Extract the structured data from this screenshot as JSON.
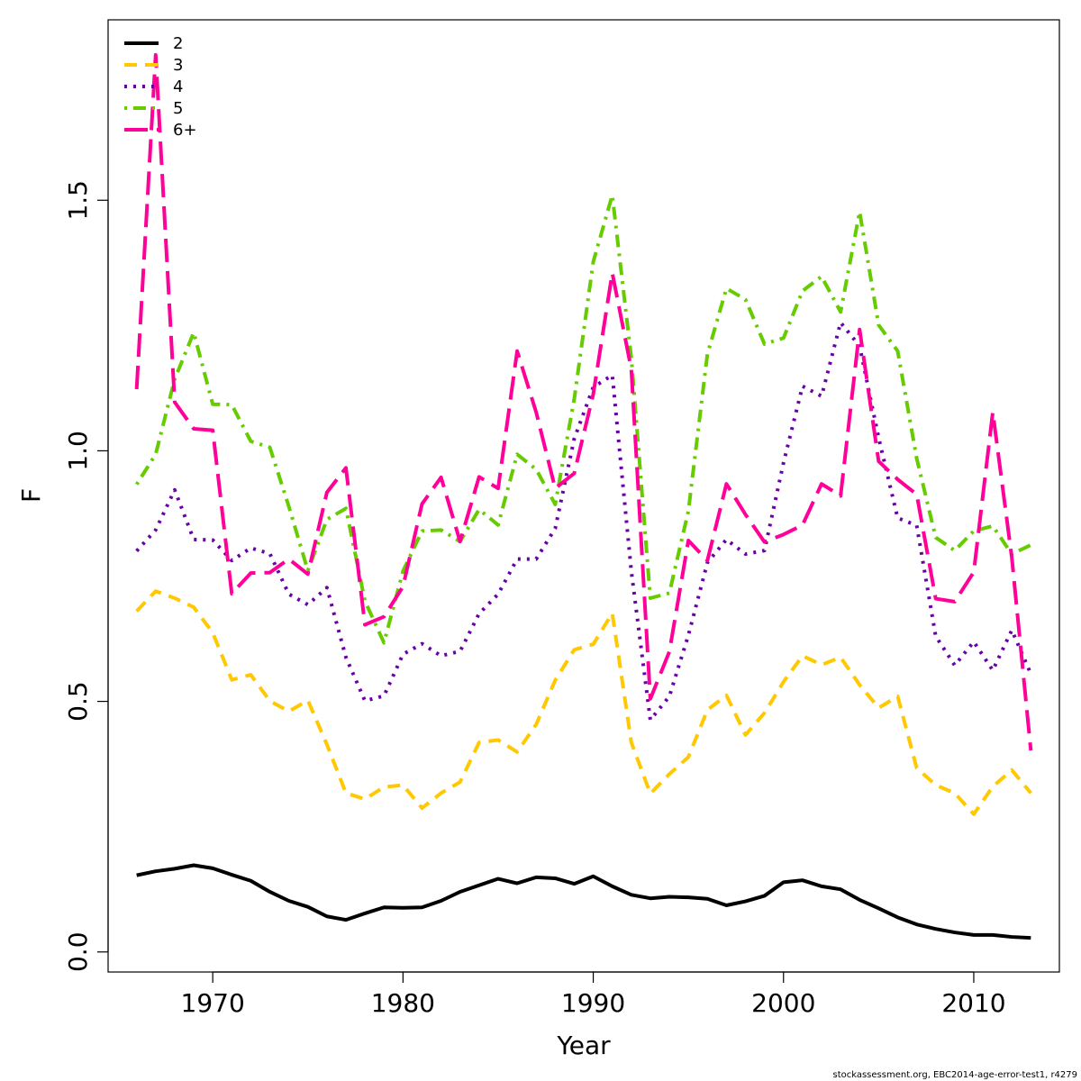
{
  "chart_data": {
    "type": "line",
    "xlabel": "Year",
    "ylabel": "F",
    "xlim": [
      1964.5,
      2014.5
    ],
    "ylim": [
      -0.04,
      1.86
    ],
    "x_ticks": [
      1970,
      1980,
      1990,
      2000,
      2010
    ],
    "x_tick_labels": [
      "1970",
      "1980",
      "1990",
      "2000",
      "2010"
    ],
    "y_ticks": [
      0.0,
      0.5,
      1.0,
      1.5
    ],
    "y_tick_labels": [
      "0.0",
      "0.5",
      "1.0",
      "1.5"
    ],
    "grid": false,
    "legend_position": "top-left",
    "x": [
      1966,
      1967,
      1968,
      1969,
      1970,
      1971,
      1972,
      1973,
      1974,
      1975,
      1976,
      1977,
      1978,
      1979,
      1980,
      1981,
      1982,
      1983,
      1984,
      1985,
      1986,
      1987,
      1988,
      1989,
      1990,
      1991,
      1992,
      1993,
      1994,
      1995,
      1996,
      1997,
      1998,
      1999,
      2000,
      2001,
      2002,
      2003,
      2004,
      2005,
      2006,
      2007,
      2008,
      2009,
      2010,
      2011,
      2012,
      2013
    ],
    "series": [
      {
        "name": "2",
        "color": "#000000",
        "dash": "solid",
        "values": [
          0.153,
          0.161,
          0.166,
          0.173,
          0.167,
          0.154,
          0.142,
          0.12,
          0.102,
          0.09,
          0.071,
          0.064,
          0.077,
          0.089,
          0.088,
          0.089,
          0.102,
          0.12,
          0.133,
          0.146,
          0.137,
          0.149,
          0.147,
          0.136,
          0.151,
          0.131,
          0.114,
          0.107,
          0.11,
          0.109,
          0.106,
          0.093,
          0.101,
          0.112,
          0.139,
          0.143,
          0.131,
          0.125,
          0.104,
          0.087,
          0.069,
          0.055,
          0.046,
          0.039,
          0.034,
          0.034,
          0.03,
          0.028
        ]
      },
      {
        "name": "3",
        "color": "#ffc800",
        "dash": "dashed",
        "values": [
          0.68,
          0.72,
          0.706,
          0.688,
          0.637,
          0.543,
          0.553,
          0.501,
          0.48,
          0.502,
          0.414,
          0.317,
          0.305,
          0.329,
          0.333,
          0.287,
          0.317,
          0.339,
          0.418,
          0.423,
          0.399,
          0.454,
          0.542,
          0.603,
          0.614,
          0.676,
          0.418,
          0.316,
          0.355,
          0.389,
          0.483,
          0.512,
          0.433,
          0.477,
          0.539,
          0.591,
          0.573,
          0.588,
          0.533,
          0.487,
          0.51,
          0.367,
          0.333,
          0.317,
          0.275,
          0.33,
          0.363,
          0.317
        ]
      },
      {
        "name": "4",
        "color": "#6a00a8",
        "dash": "dotted",
        "values": [
          0.8,
          0.842,
          0.922,
          0.823,
          0.822,
          0.781,
          0.806,
          0.795,
          0.714,
          0.693,
          0.727,
          0.588,
          0.501,
          0.511,
          0.594,
          0.615,
          0.591,
          0.6,
          0.675,
          0.714,
          0.784,
          0.784,
          0.845,
          1.024,
          1.127,
          1.151,
          0.76,
          0.463,
          0.51,
          0.632,
          0.777,
          0.823,
          0.794,
          0.801,
          0.976,
          1.129,
          1.109,
          1.256,
          1.209,
          1.026,
          0.866,
          0.851,
          0.63,
          0.572,
          0.619,
          0.562,
          0.642,
          0.555
        ]
      },
      {
        "name": "5",
        "color": "#66cc00",
        "dash": "dotdash",
        "values": [
          0.933,
          0.993,
          1.143,
          1.236,
          1.093,
          1.092,
          1.019,
          1.007,
          0.889,
          0.761,
          0.863,
          0.885,
          0.7,
          0.617,
          0.76,
          0.84,
          0.842,
          0.819,
          0.883,
          0.852,
          0.993,
          0.963,
          0.893,
          1.103,
          1.377,
          1.51,
          1.186,
          0.706,
          0.716,
          0.88,
          1.193,
          1.324,
          1.302,
          1.213,
          1.225,
          1.319,
          1.348,
          1.277,
          1.477,
          1.251,
          1.199,
          0.985,
          0.827,
          0.801,
          0.84,
          0.85,
          0.794,
          0.812
        ]
      },
      {
        "name": "6+",
        "color": "#ff0099",
        "dash": "longdash",
        "values": [
          1.123,
          1.79,
          1.097,
          1.044,
          1.041,
          0.715,
          0.756,
          0.757,
          0.784,
          0.754,
          0.917,
          0.966,
          0.653,
          0.669,
          0.729,
          0.894,
          0.947,
          0.819,
          0.948,
          0.925,
          1.199,
          1.077,
          0.925,
          0.955,
          1.113,
          1.355,
          1.163,
          0.505,
          0.599,
          0.821,
          0.781,
          0.934,
          0.873,
          0.818,
          0.833,
          0.852,
          0.934,
          0.91,
          1.242,
          0.979,
          0.943,
          0.913,
          0.705,
          0.699,
          0.758,
          1.077,
          0.787,
          0.402
        ]
      }
    ]
  },
  "footer_note": "stockassessment.org, EBC2014-age-error-test1, r4279"
}
